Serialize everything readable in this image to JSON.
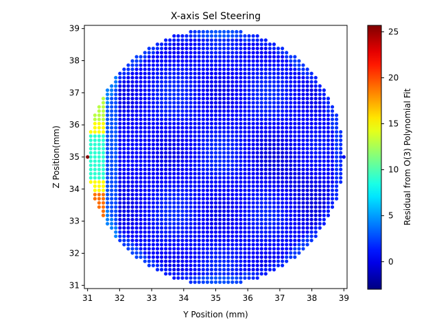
{
  "chart_data": {
    "type": "scatter",
    "title": "X-axis Sel Steering",
    "xlabel": "Y Position (mm)",
    "ylabel": "Z Position(mm)",
    "xlim": [
      30.9,
      39.1
    ],
    "ylim": [
      30.9,
      39.1
    ],
    "xticks": [
      31,
      32,
      33,
      34,
      35,
      36,
      37,
      38,
      39
    ],
    "yticks": [
      31,
      32,
      33,
      34,
      35,
      36,
      37,
      38,
      39
    ],
    "grid": false,
    "marker": "dot",
    "colormap": "jet",
    "grid_center": [
      35,
      35
    ],
    "grid_radius_mm": 4.0,
    "grid_step_mm": 0.13,
    "residual_pattern": {
      "typical_value_range": [
        -1,
        3
      ],
      "left_edge_values_by_z": [
        {
          "z": 36.3,
          "value": 13
        },
        {
          "z": 35.9,
          "value": 15
        },
        {
          "z": 35.5,
          "value": 9
        },
        {
          "z": 34.5,
          "value": 9
        },
        {
          "z": 34.1,
          "value": 15
        },
        {
          "z": 33.6,
          "value": 19
        }
      ],
      "outliers": [
        {
          "y": 31.0,
          "z": 35.0,
          "value": 25.5
        },
        {
          "y": 39.0,
          "z": 35.0,
          "value": 0
        }
      ]
    },
    "colorbar": {
      "label": "Residual from O(3) Polynomial Fit",
      "min": -3,
      "max": 25.7,
      "ticks": [
        0,
        5,
        10,
        15,
        20,
        25
      ],
      "colors": [
        "#00007f",
        "#0000ff",
        "#007fff",
        "#00ffff",
        "#7fff7f",
        "#ffff00",
        "#ff7f00",
        "#ff0000",
        "#7f0000"
      ]
    }
  }
}
